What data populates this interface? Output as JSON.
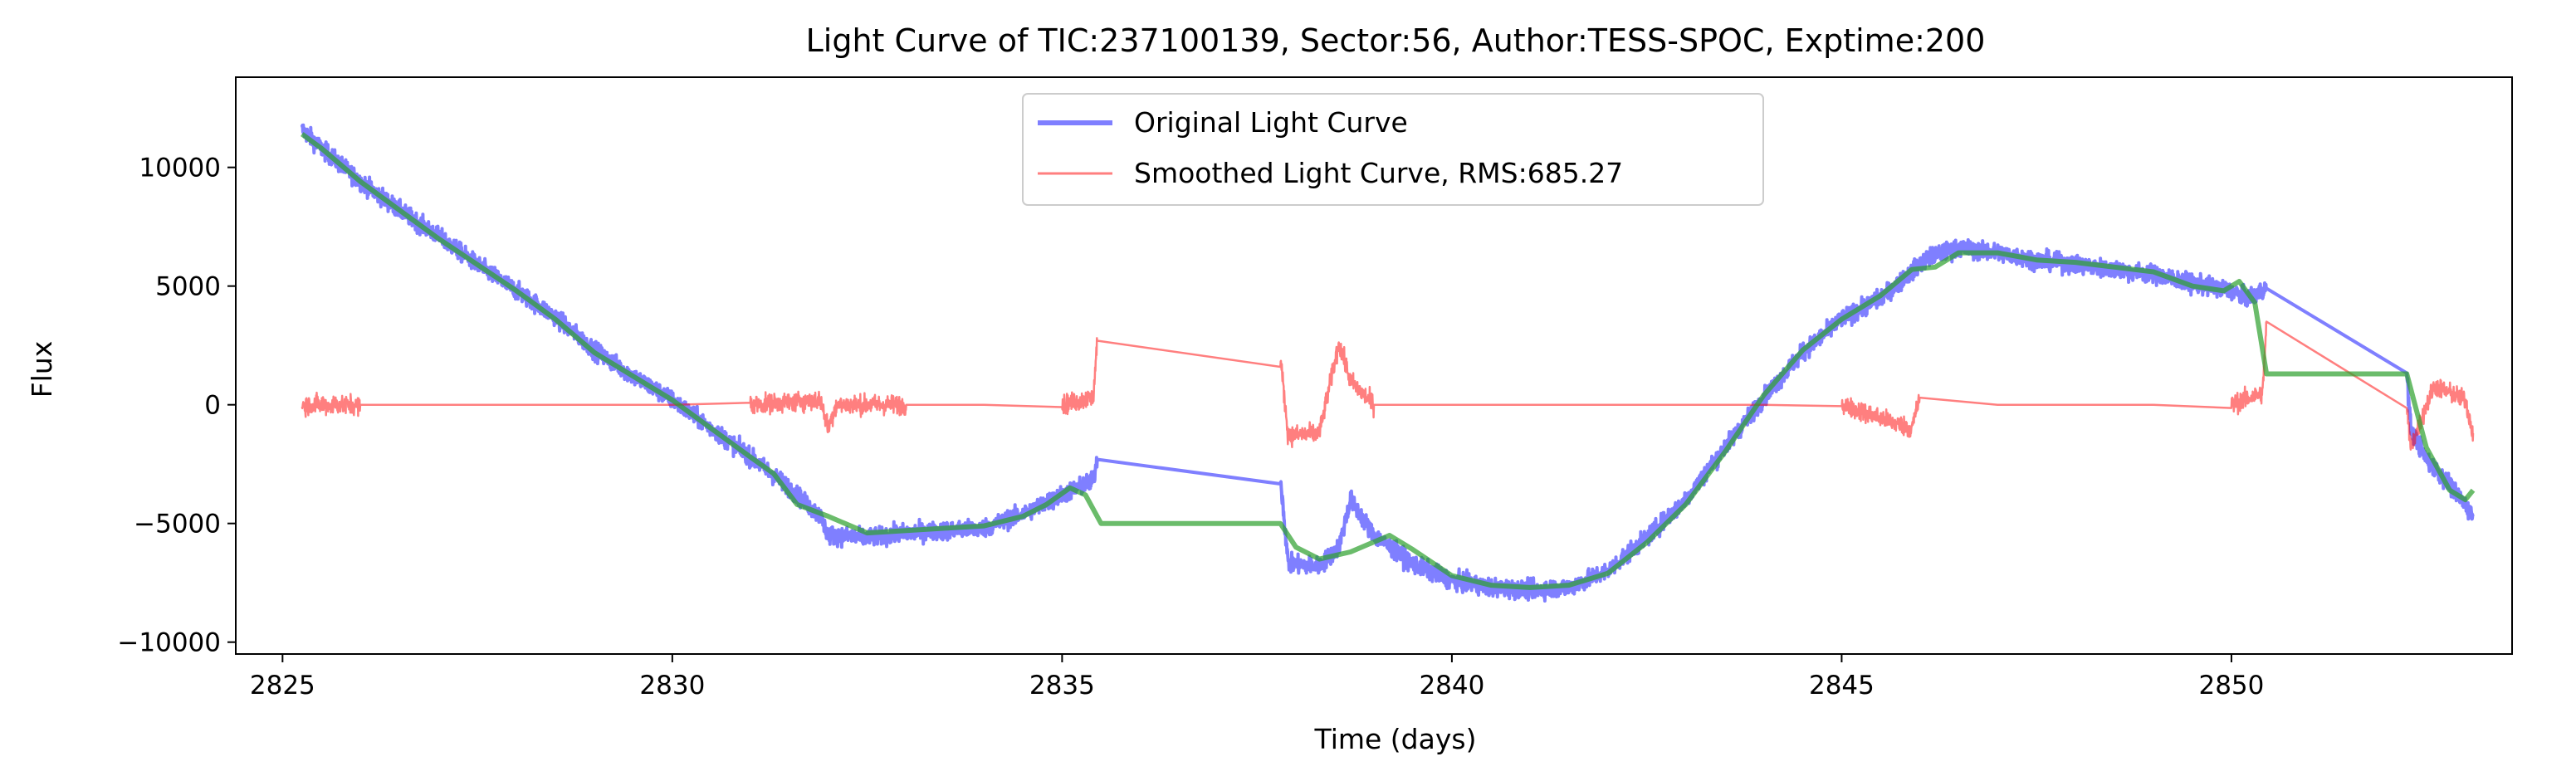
{
  "chart_data": {
    "type": "line",
    "title": "Light Curve of TIC:237100139, Sector:56, Author:TESS-SPOC, Exptime:200",
    "xlabel": "Time (days)",
    "ylabel": "Flux",
    "xlim": [
      2824.4,
      2853.6
    ],
    "ylim": [
      -10500,
      13800
    ],
    "xticks": [
      2825,
      2830,
      2835,
      2840,
      2845,
      2850
    ],
    "yticks": [
      -10000,
      -5000,
      0,
      5000,
      10000
    ],
    "grid": false,
    "legend_position": "top-center",
    "series": [
      {
        "name": "Original Light Curve",
        "color": "#0000ff",
        "noise": 650,
        "points": [
          [
            2825.25,
            11600
          ],
          [
            2825.5,
            10800
          ],
          [
            2826,
            9400
          ],
          [
            2826.5,
            8200
          ],
          [
            2827,
            7100
          ],
          [
            2827.5,
            5900
          ],
          [
            2828,
            4800
          ],
          [
            2828.5,
            3700
          ],
          [
            2829,
            2300
          ],
          [
            2829.5,
            1200
          ],
          [
            2830,
            200
          ],
          [
            2830.5,
            -1000
          ],
          [
            2831,
            -2200
          ],
          [
            2831.5,
            -3500
          ],
          [
            2831.9,
            -4700
          ],
          [
            2832.0,
            -5500
          ],
          [
            2832.5,
            -5600
          ],
          [
            2833,
            -5400
          ],
          [
            2833.5,
            -5300
          ],
          [
            2834,
            -5200
          ],
          [
            2834.5,
            -4600
          ],
          [
            2835,
            -3800
          ],
          [
            2835.4,
            -3200
          ],
          [
            2835.45,
            -2300
          ],
          [
            2837.8,
            -3000
          ],
          [
            2837.9,
            -6700
          ],
          [
            2838.3,
            -6800
          ],
          [
            2838.55,
            -6000
          ],
          [
            2838.7,
            -4000
          ],
          [
            2839,
            -5500
          ],
          [
            2839.5,
            -6700
          ],
          [
            2840,
            -7400
          ],
          [
            2840.5,
            -7700
          ],
          [
            2841,
            -7800
          ],
          [
            2841.5,
            -7700
          ],
          [
            2842,
            -7000
          ],
          [
            2842.5,
            -5600
          ],
          [
            2843,
            -4000
          ],
          [
            2843.5,
            -1800
          ],
          [
            2844,
            300
          ],
          [
            2844.5,
            2200
          ],
          [
            2845,
            3600
          ],
          [
            2845.5,
            4500
          ],
          [
            2845.9,
            5600
          ],
          [
            2846.1,
            6200
          ],
          [
            2846.5,
            6600
          ],
          [
            2847,
            6400
          ],
          [
            2847.5,
            6100
          ],
          [
            2848,
            5900
          ],
          [
            2848.5,
            5700
          ],
          [
            2849,
            5500
          ],
          [
            2849.5,
            5100
          ],
          [
            2849.9,
            4900
          ],
          [
            2850.2,
            4500
          ],
          [
            2850.45,
            4900
          ],
          [
            2852.25,
            1300
          ],
          [
            2852.3,
            -1000
          ],
          [
            2852.5,
            -2300
          ],
          [
            2852.7,
            -3000
          ],
          [
            2853.0,
            -4200
          ],
          [
            2853.1,
            -4700
          ]
        ]
      },
      {
        "name": "Smoothed Light Curve, RMS:685.27",
        "color": "#ff0000",
        "noise": 700,
        "points": [
          [
            2825.25,
            0
          ],
          [
            2826,
            0
          ],
          [
            2827,
            0
          ],
          [
            2828,
            0
          ],
          [
            2829,
            0
          ],
          [
            2830,
            0
          ],
          [
            2831,
            0
          ],
          [
            2831.9,
            200
          ],
          [
            2832.0,
            -1000
          ],
          [
            2832.1,
            0
          ],
          [
            2833,
            0
          ],
          [
            2834,
            0
          ],
          [
            2835,
            0
          ],
          [
            2835.4,
            300
          ],
          [
            2835.45,
            2700
          ],
          [
            2837.8,
            2000
          ],
          [
            2837.9,
            -1300
          ],
          [
            2838.3,
            -1200
          ],
          [
            2838.55,
            2600
          ],
          [
            2838.7,
            1000
          ],
          [
            2839,
            0
          ],
          [
            2840,
            0
          ],
          [
            2841,
            0
          ],
          [
            2842,
            0
          ],
          [
            2843,
            0
          ],
          [
            2844,
            0
          ],
          [
            2845,
            0
          ],
          [
            2845.9,
            -1000
          ],
          [
            2846.0,
            300
          ],
          [
            2847,
            0
          ],
          [
            2848,
            0
          ],
          [
            2849,
            0
          ],
          [
            2850,
            0
          ],
          [
            2850.4,
            500
          ],
          [
            2850.45,
            3500
          ],
          [
            2852.25,
            -200
          ],
          [
            2852.3,
            -1800
          ],
          [
            2852.6,
            800
          ],
          [
            2853.0,
            200
          ],
          [
            2853.1,
            -1200
          ]
        ]
      },
      {
        "name": "",
        "color": "#2ca02c",
        "noise": 0,
        "points": [
          [
            2825.25,
            11400
          ],
          [
            2825.5,
            10800
          ],
          [
            2826,
            9400
          ],
          [
            2826.5,
            8200
          ],
          [
            2827,
            7000
          ],
          [
            2827.5,
            5900
          ],
          [
            2828,
            4800
          ],
          [
            2828.5,
            3600
          ],
          [
            2829,
            2200
          ],
          [
            2829.5,
            1200
          ],
          [
            2830,
            200
          ],
          [
            2830.5,
            -1000
          ],
          [
            2831,
            -2200
          ],
          [
            2831.3,
            -2900
          ],
          [
            2831.6,
            -4200
          ],
          [
            2832.0,
            -4700
          ],
          [
            2832.5,
            -5400
          ],
          [
            2833,
            -5300
          ],
          [
            2833.5,
            -5200
          ],
          [
            2834,
            -5100
          ],
          [
            2834.5,
            -4700
          ],
          [
            2834.8,
            -4200
          ],
          [
            2835.1,
            -3500
          ],
          [
            2835.3,
            -3800
          ],
          [
            2835.5,
            -5000
          ],
          [
            2837.8,
            -5000
          ],
          [
            2838.0,
            -6000
          ],
          [
            2838.3,
            -6500
          ],
          [
            2838.7,
            -6200
          ],
          [
            2839.2,
            -5500
          ],
          [
            2839.5,
            -6100
          ],
          [
            2840,
            -7200
          ],
          [
            2840.5,
            -7600
          ],
          [
            2841,
            -7700
          ],
          [
            2841.5,
            -7600
          ],
          [
            2842,
            -7100
          ],
          [
            2842.5,
            -5800
          ],
          [
            2843,
            -4200
          ],
          [
            2843.5,
            -2000
          ],
          [
            2844,
            400
          ],
          [
            2844.5,
            2300
          ],
          [
            2845,
            3600
          ],
          [
            2845.5,
            4600
          ],
          [
            2845.9,
            5700
          ],
          [
            2846.2,
            5800
          ],
          [
            2846.5,
            6400
          ],
          [
            2847,
            6400
          ],
          [
            2847.5,
            6100
          ],
          [
            2848,
            6000
          ],
          [
            2848.5,
            5800
          ],
          [
            2849,
            5600
          ],
          [
            2849.5,
            5000
          ],
          [
            2849.9,
            4800
          ],
          [
            2850.1,
            5200
          ],
          [
            2850.3,
            4300
          ],
          [
            2850.45,
            1300
          ],
          [
            2852.25,
            1300
          ],
          [
            2852.5,
            -1800
          ],
          [
            2852.8,
            -3600
          ],
          [
            2853.0,
            -4000
          ],
          [
            2853.1,
            -3600
          ]
        ]
      }
    ]
  }
}
